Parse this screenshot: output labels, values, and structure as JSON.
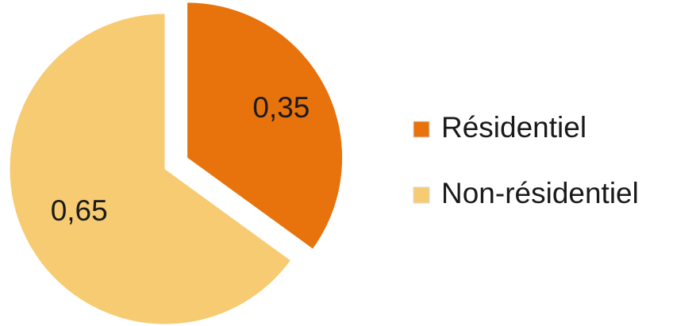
{
  "chart_data": {
    "type": "pie",
    "categories": [
      "Résidentiel",
      "Non-résidentiel"
    ],
    "values": [
      0.35,
      0.65
    ],
    "value_labels": [
      "0,35",
      "0,65"
    ],
    "colors": [
      "#e8720c",
      "#f7cb72"
    ],
    "legend": "right"
  }
}
